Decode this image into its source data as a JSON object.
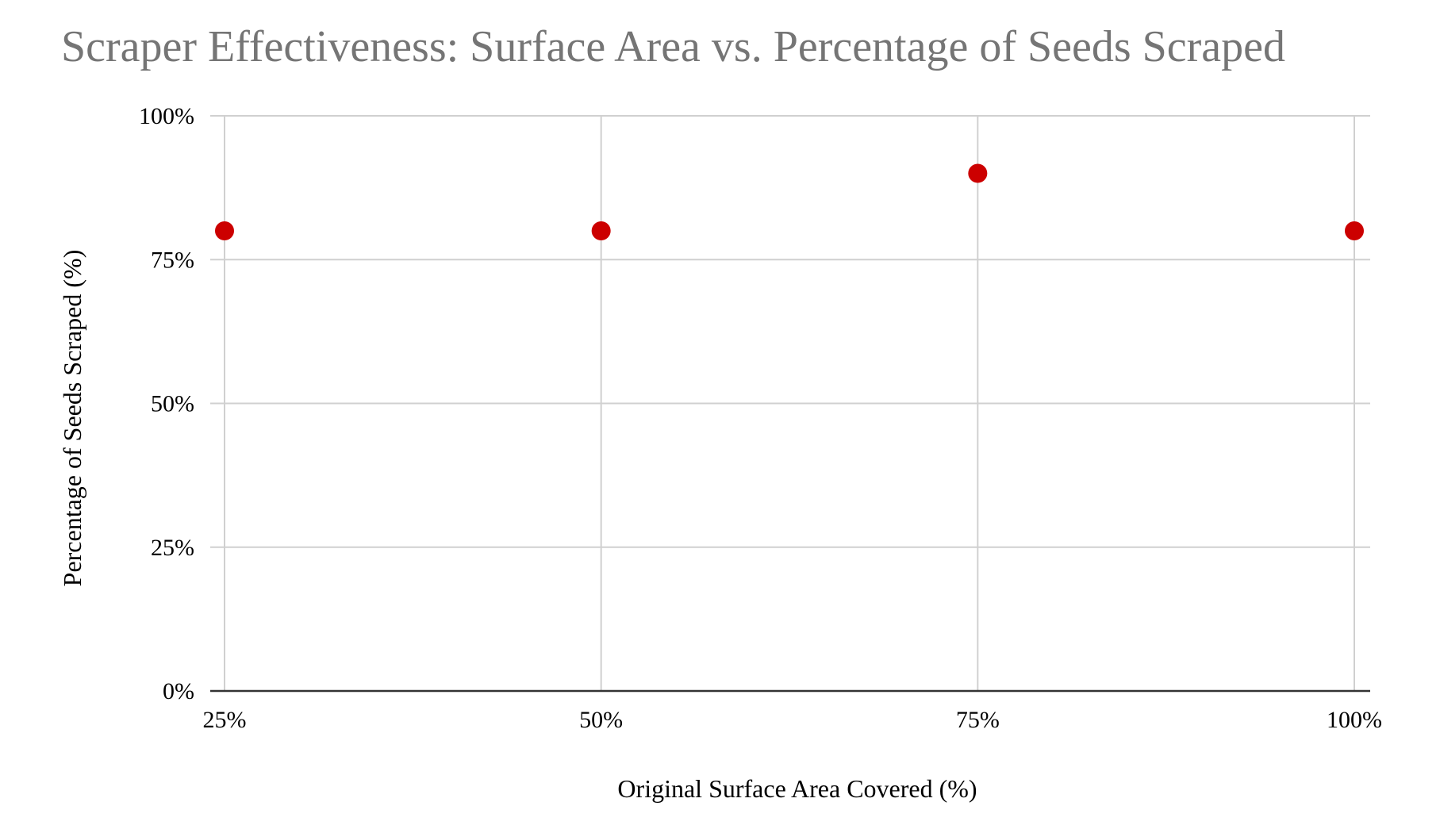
{
  "chart_data": {
    "type": "scatter",
    "title": "Scraper Effectiveness: Surface Area vs. Percentage of Seeds Scraped",
    "xlabel": "Original Surface Area Covered (%)",
    "ylabel": "Percentage of Seeds Scraped (%)",
    "x_ticks": [
      "25%",
      "50%",
      "75%",
      "100%"
    ],
    "y_ticks": [
      "0%",
      "25%",
      "50%",
      "75%",
      "100%"
    ],
    "xlim": [
      25,
      100
    ],
    "ylim": [
      0,
      100
    ],
    "grid": true,
    "legend": "none",
    "series": [
      {
        "color": "#cc0000",
        "points": [
          {
            "x": 25,
            "y": 80
          },
          {
            "x": 50,
            "y": 80
          },
          {
            "x": 75,
            "y": 90
          },
          {
            "x": 100,
            "y": 80
          }
        ]
      }
    ]
  }
}
